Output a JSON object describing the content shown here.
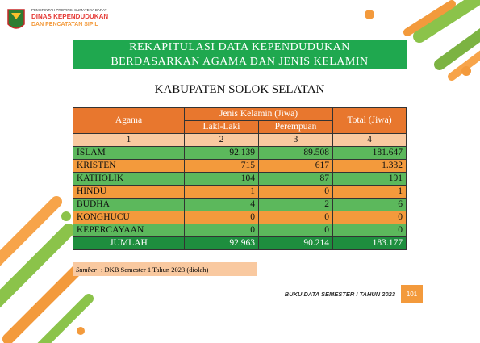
{
  "header": {
    "org_line1": "PEMERINTAH PROVINSI SUMATERA BARAT",
    "org_line2": "DINAS KEPENDUDUKAN",
    "org_line3": "DAN PENCATATAN SIPIL"
  },
  "banner": {
    "line1": "REKAPITULASI DATA KEPENDUDUKAN",
    "line2": "BERDASARKAN AGAMA DAN JENIS KELAMIN"
  },
  "subtitle": "KABUPATEN SOLOK SELATAN",
  "table": {
    "head": {
      "agama": "Agama",
      "gender": "Jenis Kelamin (Jiwa)",
      "male": "Laki-Laki",
      "female": "Perempuan",
      "total": "Total (Jiwa)"
    },
    "numbers": [
      "1",
      "2",
      "3",
      "4"
    ],
    "rows": [
      [
        "ISLAM",
        "92.139",
        "89.508",
        "181.647"
      ],
      [
        "KRISTEN",
        "715",
        "617",
        "1.332"
      ],
      [
        "KATHOLIK",
        "104",
        "87",
        "191"
      ],
      [
        "HINDU",
        "1",
        "0",
        "1"
      ],
      [
        "BUDHA",
        "4",
        "2",
        "6"
      ],
      [
        "KONGHUCU",
        "0",
        "0",
        "0"
      ],
      [
        "KEPERCAYAAN",
        "0",
        "0",
        "0"
      ]
    ],
    "total_row": [
      "JUMLAH",
      "92.963",
      "90.214",
      "183.177"
    ]
  },
  "source": {
    "label": "Sumber",
    "text": ": DKB Semester 1 Tahun 2023 (diolah)"
  },
  "footer": {
    "book": "BUKU DATA SEMESTER I TAHUN 2023",
    "page": "101"
  }
}
